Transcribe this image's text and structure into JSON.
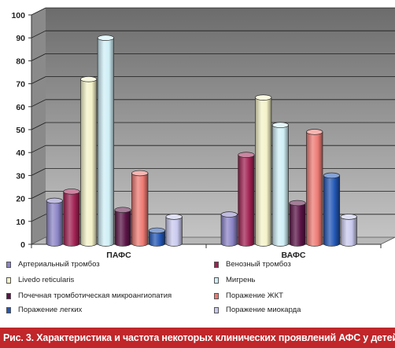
{
  "chart_data": {
    "type": "bar",
    "categories": [
      "ПАФС",
      "ВАФС"
    ],
    "series": [
      {
        "name": "Артериальный тромбоз",
        "color": "#8c85c8",
        "values": [
          19,
          13
        ]
      },
      {
        "name": "Венозный тромбоз",
        "color": "#a02152",
        "values": [
          23,
          39
        ]
      },
      {
        "name": "Livedo reticularis",
        "color": "#f4f2c8",
        "values": [
          72,
          64
        ]
      },
      {
        "name": "Мигрень",
        "color": "#cfeff6",
        "values": [
          90,
          52
        ]
      },
      {
        "name": "Почечная тромботическая микроангиопатия",
        "color": "#5a1446",
        "values": [
          15,
          18
        ]
      },
      {
        "name": "Поражение ЖКТ",
        "color": "#ee7a73",
        "values": [
          31,
          49
        ]
      },
      {
        "name": "Поражение легких",
        "color": "#2357b5",
        "values": [
          6,
          30
        ]
      },
      {
        "name": "Поражение миокарда",
        "color": "#c9c9ef",
        "values": [
          12,
          12
        ]
      }
    ],
    "ylim": [
      0,
      100
    ],
    "yticks": [
      0,
      10,
      20,
      30,
      40,
      50,
      60,
      70,
      80,
      90,
      100
    ],
    "grid": true,
    "legend_position": "bottom"
  },
  "caption": {
    "label": "Рис. 3.",
    "text": "Характеристика и частота некоторых клинических проявлений  АФС у детей"
  }
}
